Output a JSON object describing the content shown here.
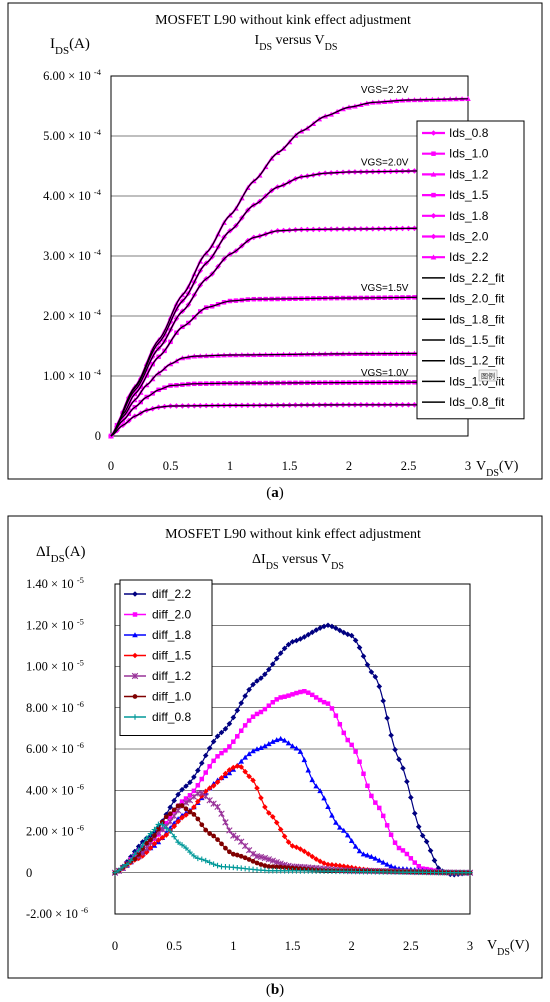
{
  "chart_data": [
    {
      "type": "line",
      "title": "MOSFET L90 without kink effect adjustment",
      "subtitle": "I_DS versus V_DS",
      "ylabel": "I_DS(A)",
      "xlabel": "V_DS(V)",
      "xlim": [
        0,
        3
      ],
      "ylim": [
        0,
        0.0006
      ],
      "xticks": [
        "0",
        "0.5",
        "1",
        "1.5",
        "2",
        "2.5",
        "3"
      ],
      "yticks": [
        "0",
        "1.00 × 10^-4",
        "2.00 × 10^-4",
        "3.00 × 10^-4",
        "4.00 × 10^-4",
        "5.00 × 10^-4",
        "6.00 × 10^-4"
      ],
      "grid": true,
      "legend_position": "right",
      "panel_label": "a",
      "annotations": [
        "VGS=2.2V",
        "VGS=2.0V",
        "VGS=1.5V",
        "VGS=1.0V"
      ],
      "series": [
        {
          "name": "Ids_0.8",
          "color": "#ff00ff",
          "marker": "diamond",
          "vgs": 0.8,
          "values_at_x": [
            [
              0,
              0
            ],
            [
              0.1,
              1.8e-05
            ],
            [
              0.2,
              3.3e-05
            ],
            [
              0.3,
              4.3e-05
            ],
            [
              0.4,
              4.8e-05
            ],
            [
              0.5,
              5e-05
            ],
            [
              1,
              5.1e-05
            ],
            [
              2,
              5.2e-05
            ],
            [
              3,
              5.2e-05
            ]
          ]
        },
        {
          "name": "Ids_1.0",
          "color": "#ff00ff",
          "marker": "square",
          "vgs": 1.0,
          "values_at_x": [
            [
              0,
              0
            ],
            [
              0.1,
              2.6e-05
            ],
            [
              0.2,
              4.8e-05
            ],
            [
              0.3,
              6.5e-05
            ],
            [
              0.4,
              7.7e-05
            ],
            [
              0.5,
              8.4e-05
            ],
            [
              0.7,
              8.7e-05
            ],
            [
              1,
              8.8e-05
            ],
            [
              2,
              8.9e-05
            ],
            [
              3,
              9e-05
            ]
          ]
        },
        {
          "name": "Ids_1.2",
          "color": "#ff00ff",
          "marker": "triangle",
          "vgs": 1.2,
          "values_at_x": [
            [
              0,
              0
            ],
            [
              0.1,
              3.2e-05
            ],
            [
              0.2,
              6e-05
            ],
            [
              0.3,
              8.5e-05
            ],
            [
              0.4,
              0.000105
            ],
            [
              0.5,
              0.00012
            ],
            [
              0.6,
              0.00013
            ],
            [
              0.7,
              0.000133
            ],
            [
              1,
              0.000135
            ],
            [
              2,
              0.000137
            ],
            [
              3,
              0.000138
            ]
          ]
        },
        {
          "name": "Ids_1.5",
          "color": "#ff00ff",
          "marker": "square",
          "vgs": 1.5,
          "values_at_x": [
            [
              0,
              0
            ],
            [
              0.1,
              3.6e-05
            ],
            [
              0.2,
              7e-05
            ],
            [
              0.4,
              0.000132
            ],
            [
              0.6,
              0.000182
            ],
            [
              0.8,
              0.000214
            ],
            [
              1.0,
              0.000225
            ],
            [
              1.2,
              0.000228
            ],
            [
              2,
              0.00023
            ],
            [
              3,
              0.000232
            ]
          ]
        },
        {
          "name": "Ids_1.8",
          "color": "#ff00ff",
          "marker": "diamond",
          "vgs": 1.8,
          "values_at_x": [
            [
              0,
              0
            ],
            [
              0.2,
              7.6e-05
            ],
            [
              0.4,
              0.000146
            ],
            [
              0.6,
              0.000208
            ],
            [
              0.8,
              0.000262
            ],
            [
              1.0,
              0.000303
            ],
            [
              1.2,
              0.000331
            ],
            [
              1.4,
              0.000342
            ],
            [
              1.6,
              0.000344
            ],
            [
              2,
              0.000345
            ],
            [
              3,
              0.000347
            ]
          ]
        },
        {
          "name": "Ids_2.0",
          "color": "#ff00ff",
          "marker": "diamond",
          "vgs": 2.0,
          "values_at_x": [
            [
              0,
              0
            ],
            [
              0.2,
              8e-05
            ],
            [
              0.4,
              0.000155
            ],
            [
              0.6,
              0.000225
            ],
            [
              0.8,
              0.000288
            ],
            [
              1.0,
              0.000342
            ],
            [
              1.2,
              0.000385
            ],
            [
              1.4,
              0.000415
            ],
            [
              1.6,
              0.000432
            ],
            [
              1.8,
              0.000438
            ],
            [
              2,
              0.00044
            ],
            [
              3,
              0.000443
            ]
          ]
        },
        {
          "name": "Ids_2.2",
          "color": "#ff00ff",
          "marker": "triangle",
          "vgs": 2.2,
          "values_at_x": [
            [
              0,
              0
            ],
            [
              0.2,
              8.2e-05
            ],
            [
              0.4,
              0.00016
            ],
            [
              0.6,
              0.000235
            ],
            [
              0.8,
              0.000305
            ],
            [
              1.0,
              0.000368
            ],
            [
              1.2,
              0.000425
            ],
            [
              1.4,
              0.000472
            ],
            [
              1.6,
              0.000508
            ],
            [
              1.8,
              0.000533
            ],
            [
              2.0,
              0.000548
            ],
            [
              2.2,
              0.000556
            ],
            [
              2.5,
              0.00056
            ],
            [
              3,
              0.000562
            ]
          ]
        },
        {
          "name": "Ids_2.2_fit",
          "color": "#000000",
          "marker": "none",
          "vgs": 2.2,
          "fit_of": "Ids_2.2"
        },
        {
          "name": "Ids_2.0_fit",
          "color": "#000000",
          "marker": "none",
          "vgs": 2.0,
          "fit_of": "Ids_2.0"
        },
        {
          "name": "Ids_1.8_fit",
          "color": "#000000",
          "marker": "none",
          "vgs": 1.8,
          "fit_of": "Ids_1.8"
        },
        {
          "name": "Ids_1.5_fit",
          "color": "#000000",
          "marker": "none",
          "vgs": 1.5,
          "fit_of": "Ids_1.5"
        },
        {
          "name": "Ids_1.2_fit",
          "color": "#000000",
          "marker": "none",
          "vgs": 1.2,
          "fit_of": "Ids_1.2"
        },
        {
          "name": "Ids_1.0_fit",
          "color": "#000000",
          "marker": "none",
          "vgs": 1.0,
          "fit_of": "Ids_1.0"
        },
        {
          "name": "Ids_0.8_fit",
          "color": "#000000",
          "marker": "none",
          "vgs": 0.8,
          "fit_of": "Ids_0.8"
        }
      ]
    },
    {
      "type": "line",
      "title": "MOSFET L90 without kink effect adjustment",
      "subtitle": "ΔI_DS versus V_DS",
      "ylabel": "ΔI_DS(A)",
      "xlabel": "V_DS(V)",
      "xlim": [
        0,
        3
      ],
      "ylim": [
        -2e-06,
        1.4e-05
      ],
      "xticks": [
        "0",
        "0.5",
        "1",
        "1.5",
        "2",
        "2.5",
        "3"
      ],
      "yticks": [
        "-2.00 × 10^-6",
        "0",
        "2.00 × 10^-6",
        "4.00 × 10^-6",
        "6.00 × 10^-6",
        "8.00 × 10^-6",
        "1.00 × 10^-5",
        "1.20 × 10^-5",
        "1.40 × 10^-5"
      ],
      "grid": true,
      "legend_position": "top-left",
      "panel_label": "b",
      "series": [
        {
          "name": "diff_2.2",
          "color": "#000080",
          "marker": "diamond",
          "peak_x": 1.8,
          "peak_y": 1.2e-05,
          "values_at_x": [
            [
              0,
              0
            ],
            [
              0.3,
              1.8e-06
            ],
            [
              0.6,
              4.2e-06
            ],
            [
              0.9,
              6.8e-06
            ],
            [
              1.2,
              9.3e-06
            ],
            [
              1.5,
              1.12e-05
            ],
            [
              1.8,
              1.2e-05
            ],
            [
              2.0,
              1.15e-05
            ],
            [
              2.2,
              9.5e-06
            ],
            [
              2.4,
              5.5e-06
            ],
            [
              2.6,
              1.8e-06
            ],
            [
              2.75,
              1e-07
            ],
            [
              2.85,
              -1e-07
            ],
            [
              3,
              0
            ]
          ]
        },
        {
          "name": "diff_2.0",
          "color": "#ff00ff",
          "marker": "square",
          "peak_x": 1.6,
          "peak_y": 8.8e-06,
          "values_at_x": [
            [
              0,
              0
            ],
            [
              0.3,
              1.5e-06
            ],
            [
              0.6,
              3.6e-06
            ],
            [
              0.9,
              5.8e-06
            ],
            [
              1.2,
              7.7e-06
            ],
            [
              1.4,
              8.5e-06
            ],
            [
              1.6,
              8.8e-06
            ],
            [
              1.8,
              8.2e-06
            ],
            [
              2.0,
              6.2e-06
            ],
            [
              2.2,
              3.4e-06
            ],
            [
              2.4,
              1.2e-06
            ],
            [
              2.6,
              2e-07
            ],
            [
              2.8,
              0
            ],
            [
              3,
              0
            ]
          ]
        },
        {
          "name": "diff_1.8",
          "color": "#0000ff",
          "marker": "triangle",
          "peak_x": 1.4,
          "peak_y": 6.5e-06,
          "values_at_x": [
            [
              0,
              0
            ],
            [
              0.3,
              1.2e-06
            ],
            [
              0.6,
              2.9e-06
            ],
            [
              0.9,
              4.6e-06
            ],
            [
              1.2,
              6e-06
            ],
            [
              1.4,
              6.5e-06
            ],
            [
              1.55,
              6e-06
            ],
            [
              1.7,
              4.2e-06
            ],
            [
              1.9,
              2.2e-06
            ],
            [
              2.1,
              9e-07
            ],
            [
              2.4,
              2e-07
            ],
            [
              2.8,
              0
            ],
            [
              3,
              0
            ]
          ]
        },
        {
          "name": "diff_1.5",
          "color": "#ff0000",
          "marker": "diamond",
          "peak_x": 1.05,
          "peak_y": 5.2e-06,
          "values_at_x": [
            [
              0,
              0
            ],
            [
              0.2,
              7e-07
            ],
            [
              0.4,
              1.7e-06
            ],
            [
              0.6,
              2.8e-06
            ],
            [
              0.8,
              4.1e-06
            ],
            [
              1.0,
              5.1e-06
            ],
            [
              1.05,
              5.2e-06
            ],
            [
              1.15,
              4.6e-06
            ],
            [
              1.3,
              2.9e-06
            ],
            [
              1.5,
              1.3e-06
            ],
            [
              1.8,
              4e-07
            ],
            [
              2.2,
              1e-07
            ],
            [
              3,
              0
            ]
          ]
        },
        {
          "name": "diff_1.2",
          "color": "#993399",
          "marker": "star",
          "peak_x": 0.72,
          "peak_y": 3.9e-06,
          "values_at_x": [
            [
              0,
              0
            ],
            [
              0.2,
              8e-07
            ],
            [
              0.4,
              2.1e-06
            ],
            [
              0.6,
              3.4e-06
            ],
            [
              0.72,
              3.9e-06
            ],
            [
              0.85,
              3.3e-06
            ],
            [
              1.0,
              1.8e-06
            ],
            [
              1.2,
              8e-07
            ],
            [
              1.5,
              3e-07
            ],
            [
              2.0,
              1e-07
            ],
            [
              3,
              0
            ]
          ]
        },
        {
          "name": "diff_1.0",
          "color": "#800000",
          "marker": "circle",
          "peak_x": 0.55,
          "peak_y": 3.3e-06,
          "values_at_x": [
            [
              0,
              0
            ],
            [
              0.15,
              6e-07
            ],
            [
              0.3,
              1.6e-06
            ],
            [
              0.45,
              2.8e-06
            ],
            [
              0.55,
              3.3e-06
            ],
            [
              0.65,
              2.9e-06
            ],
            [
              0.8,
              1.9e-06
            ],
            [
              1.0,
              9e-07
            ],
            [
              1.3,
              3e-07
            ],
            [
              1.8,
              1e-07
            ],
            [
              3,
              0
            ]
          ]
        },
        {
          "name": "diff_0.8",
          "color": "#009999",
          "marker": "plus",
          "peak_x": 0.38,
          "peak_y": 2.4e-06,
          "values_at_x": [
            [
              0,
              0
            ],
            [
              0.1,
              4e-07
            ],
            [
              0.2,
              1.1e-06
            ],
            [
              0.3,
              1.9e-06
            ],
            [
              0.38,
              2.4e-06
            ],
            [
              0.45,
              2.1e-06
            ],
            [
              0.55,
              1.4e-06
            ],
            [
              0.7,
              7e-07
            ],
            [
              0.9,
              3e-07
            ],
            [
              1.3,
              1e-07
            ],
            [
              3,
              0
            ]
          ]
        }
      ]
    }
  ],
  "figure_a": {
    "title": "MOSFET L90 without kink effect adjustment",
    "subtitle_main": "I",
    "subtitle_sub": "DS",
    "subtitle_mid": " versus V",
    "subtitle_sub2": "DS",
    "ylabel_main": "I",
    "ylabel_sub": "DS",
    "ylabel_tail": "(A)",
    "xlabel_main": "V",
    "xlabel_sub": "DS",
    "xlabel_tail": "(V)",
    "panel_label_open": "(",
    "panel_label": "a",
    "panel_label_close": ")",
    "legend_popup": "图例"
  },
  "figure_b": {
    "title": "MOSFET L90 without kink effect adjustment",
    "subtitle_main": "ΔI",
    "subtitle_sub": "DS",
    "subtitle_mid": " versus V",
    "subtitle_sub2": "DS",
    "ylabel_main": "ΔI",
    "ylabel_sub": "DS",
    "ylabel_tail": "(A)",
    "xlabel_main": "V",
    "xlabel_sub": "DS",
    "xlabel_tail": "(V)",
    "panel_label_open": "(",
    "panel_label": "b",
    "panel_label_close": ")"
  }
}
